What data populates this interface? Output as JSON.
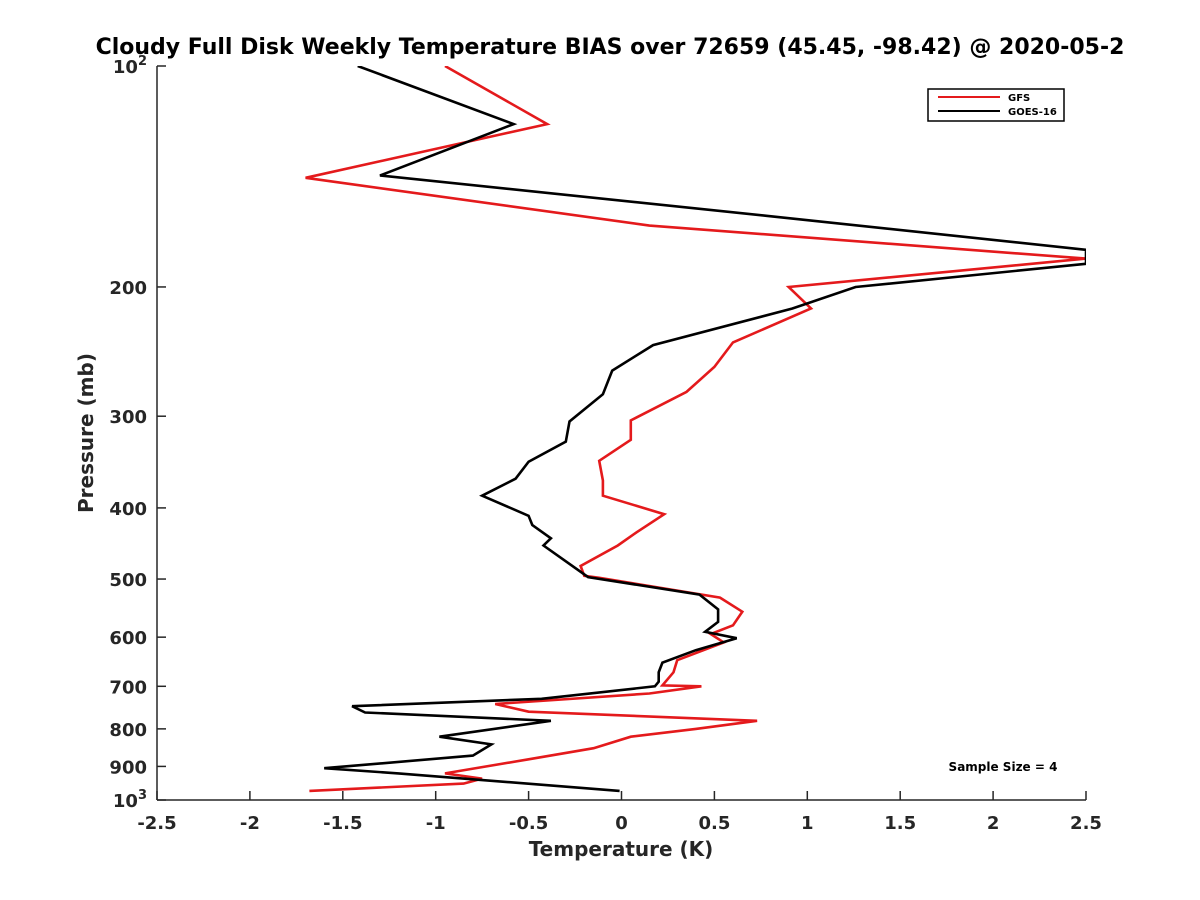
{
  "chart_data": {
    "type": "line",
    "title": "Cloudy Full Disk Weekly Temperature BIAS over 72659 (45.45, -98.42) @ 2020-05-2",
    "xlabel": "Temperature (K)",
    "ylabel": "Pressure (mb)",
    "xlim": [
      -2.5,
      2.5
    ],
    "ylim": [
      100,
      1000
    ],
    "yscale": "log",
    "y_reversed": true,
    "grid": false,
    "legend_position": "top-right",
    "xticks": [
      "-2.5",
      "-2",
      "-1.5",
      "-1",
      "-0.5",
      "0",
      "0.5",
      "1",
      "1.5",
      "2",
      "2.5"
    ],
    "xtick_values": [
      -2.5,
      -2,
      -1.5,
      -1,
      -0.5,
      0,
      0.5,
      1,
      1.5,
      2,
      2.5
    ],
    "yticks": [
      {
        "value": 100,
        "base": "10",
        "exp": "2"
      },
      {
        "value": 200,
        "label": "200"
      },
      {
        "value": 300,
        "label": "300"
      },
      {
        "value": 400,
        "label": "400"
      },
      {
        "value": 500,
        "label": "500"
      },
      {
        "value": 600,
        "label": "600"
      },
      {
        "value": 700,
        "label": "700"
      },
      {
        "value": 800,
        "label": "800"
      },
      {
        "value": 900,
        "label": "900"
      },
      {
        "value": 1000,
        "base": "10",
        "exp": "3"
      }
    ],
    "annotation": "Sample Size = 4",
    "series": [
      {
        "name": "GFS",
        "color": "#e41a1c",
        "x": [
          -0.95,
          -0.4,
          -1.7,
          0.15,
          2.5,
          0.9,
          1.02,
          0.6,
          0.5,
          0.35,
          0.05,
          0.05,
          -0.12,
          -0.1,
          -0.1,
          0.23,
          0.08,
          -0.02,
          -0.22,
          -0.2,
          -0.12,
          0.53,
          0.65,
          0.6,
          0.48,
          0.55,
          0.3,
          0.28,
          0.22,
          0.43,
          0.15,
          -0.68,
          -0.5,
          0.73,
          0.4,
          0.05,
          -0.15,
          -0.5,
          -0.95,
          -0.75,
          -0.85,
          -1.68
        ],
        "y": [
          100,
          120,
          142,
          165,
          183,
          200,
          214,
          238,
          257,
          278,
          304,
          323,
          345,
          367,
          385,
          408,
          432,
          450,
          480,
          495,
          498,
          530,
          554,
          578,
          594,
          610,
          645,
          670,
          698,
          700,
          716,
          740,
          758,
          780,
          800,
          820,
          850,
          880,
          920,
          935,
          950,
          972
        ]
      },
      {
        "name": "GOES-16",
        "color": "#000000",
        "x": [
          -1.42,
          -0.58,
          -1.3,
          0.78,
          2.5,
          2.5,
          1.26,
          0.92,
          0.17,
          -0.05,
          -0.1,
          -0.28,
          -0.3,
          -0.5,
          -0.57,
          -0.75,
          -0.5,
          -0.48,
          -0.38,
          -0.42,
          -0.18,
          0.42,
          0.52,
          0.52,
          0.45,
          0.62,
          0.4,
          0.22,
          0.2,
          0.2,
          0.18,
          -0.43,
          -1.45,
          -1.38,
          -0.38,
          -0.98,
          -0.7,
          -0.8,
          -1.6,
          -1.2,
          -0.01
        ],
        "y": [
          100,
          120,
          141,
          160,
          178,
          186,
          200,
          214,
          240,
          260,
          280,
          305,
          325,
          346,
          365,
          385,
          410,
          422,
          440,
          450,
          497,
          525,
          550,
          572,
          590,
          602,
          625,
          650,
          670,
          690,
          700,
          728,
          745,
          760,
          780,
          820,
          840,
          870,
          905,
          920,
          972
        ]
      }
    ]
  }
}
